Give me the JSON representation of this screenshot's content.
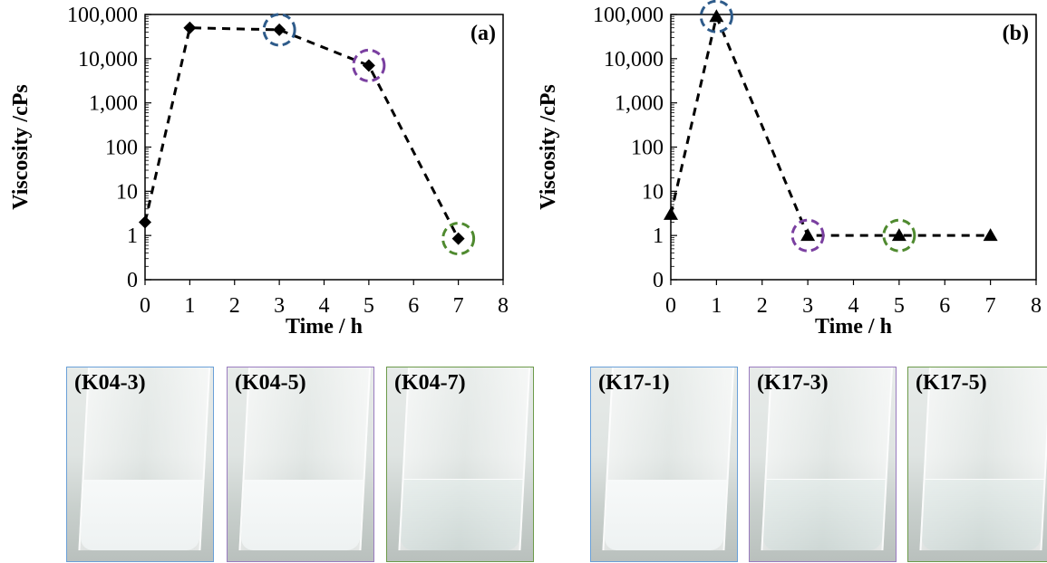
{
  "chart_data": [
    {
      "type": "line",
      "panel_label": "(a)",
      "xlabel": "Time / h",
      "ylabel": "Viscosity /cPs",
      "xlim": [
        0,
        8
      ],
      "x_ticks": [
        "0",
        "1",
        "2",
        "3",
        "4",
        "5",
        "6",
        "7",
        "8"
      ],
      "y_scale": "log",
      "y_ticks": [
        "0",
        "1",
        "10",
        "100",
        "1,000",
        "10,000",
        "100,000"
      ],
      "marker": "diamond",
      "line_style": "dashed",
      "grid": false,
      "series": [
        {
          "x": [
            0,
            1,
            3,
            5,
            7
          ],
          "y": [
            2,
            50000,
            45000,
            7000,
            0.85
          ]
        }
      ],
      "highlights": [
        {
          "x": 3,
          "color": "#2e5b8a"
        },
        {
          "x": 5,
          "color": "#7a3fa0"
        },
        {
          "x": 7,
          "color": "#4f8a2f"
        }
      ]
    },
    {
      "type": "line",
      "panel_label": "(b)",
      "xlabel": "Time / h",
      "ylabel": "Viscosity /cPs",
      "xlim": [
        0,
        8
      ],
      "x_ticks": [
        "0",
        "1",
        "2",
        "3",
        "4",
        "5",
        "6",
        "7",
        "8"
      ],
      "y_scale": "log",
      "y_ticks": [
        "0",
        "1",
        "10",
        "100",
        "1,000",
        "10,000",
        "100,000"
      ],
      "marker": "triangle",
      "line_style": "dashed",
      "grid": false,
      "series": [
        {
          "x": [
            0,
            1,
            3,
            5,
            7
          ],
          "y": [
            3,
            90000,
            1,
            1,
            1
          ]
        }
      ],
      "highlights": [
        {
          "x": 1,
          "color": "#2e5b8a"
        },
        {
          "x": 3,
          "color": "#7a3fa0"
        },
        {
          "x": 5,
          "color": "#4f8a2f"
        }
      ]
    }
  ],
  "photos": [
    {
      "label": "(K04-3)",
      "border": "#6aa0d8",
      "liquid": "milky"
    },
    {
      "label": "(K04-5)",
      "border": "#9a7cc0",
      "liquid": "milky"
    },
    {
      "label": "(K04-7)",
      "border": "#6c9a4a",
      "liquid": "clear"
    },
    {
      "label": "(K17-1)",
      "border": "#6aa0d8",
      "liquid": "milky"
    },
    {
      "label": "(K17-3)",
      "border": "#9a7cc0",
      "liquid": "clear"
    },
    {
      "label": "(K17-5)",
      "border": "#6c9a4a",
      "liquid": "clear"
    }
  ]
}
